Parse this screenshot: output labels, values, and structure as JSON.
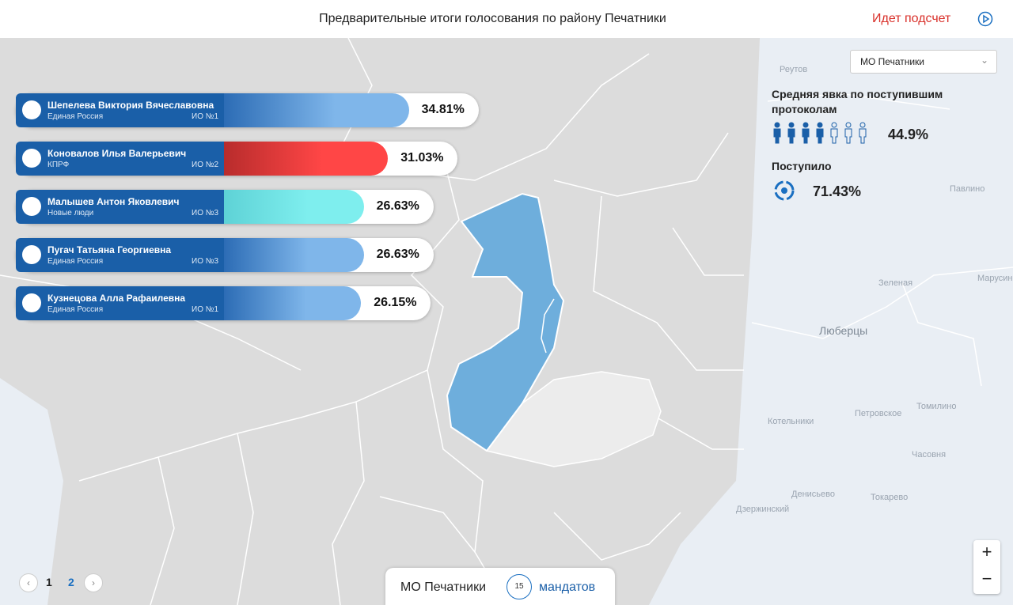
{
  "header": {
    "title": "Предварительные итоги голосования по району Печатники",
    "status": "Идет подсчет"
  },
  "candidates": [
    {
      "name": "Шепелева Виктория Вячеславовна",
      "party": "Единая Россия",
      "district": "ИО №1",
      "value": 34.81,
      "value_label": "34.81%",
      "color": "#7fb6ea"
    },
    {
      "name": "Коновалов Илья Валерьевич",
      "party": "КПРФ",
      "district": "ИО №2",
      "value": 31.03,
      "value_label": "31.03%",
      "color": "#ff4646"
    },
    {
      "name": "Малышев Антон Яковлевич",
      "party": "Новые люди",
      "district": "ИО №3",
      "value": 26.63,
      "value_label": "26.63%",
      "color": "#7eeeee"
    },
    {
      "name": "Пугач Татьяна Георгиевна",
      "party": "Единая Россия",
      "district": "ИО №3",
      "value": 26.63,
      "value_label": "26.63%",
      "color": "#7fb6ea"
    },
    {
      "name": "Кузнецова Алла Рафаилевна",
      "party": "Единая Россия",
      "district": "ИО №1",
      "value": 26.15,
      "value_label": "26.15%",
      "color": "#7fb6ea"
    }
  ],
  "panel": {
    "select": "МО Печатники",
    "turnout_title": "Средняя явка по поступившим протоколам",
    "turnout": "44.9%",
    "received_title": "Поступило",
    "received": "71.43%"
  },
  "map_labels": [
    "Реутов",
    "Люберцы",
    "Котельники",
    "Томилино",
    "Петровское",
    "Павлино",
    "Зеленая",
    "Марусино",
    "Часовня",
    "Денисьево",
    "Дзержинский",
    "Токарево"
  ],
  "pagination": [
    "1",
    "2"
  ],
  "footer": {
    "name": "МО Печатники",
    "seats": "15",
    "seats_label": "мандатов"
  },
  "zoom": {
    "in": "+",
    "out": "−"
  }
}
